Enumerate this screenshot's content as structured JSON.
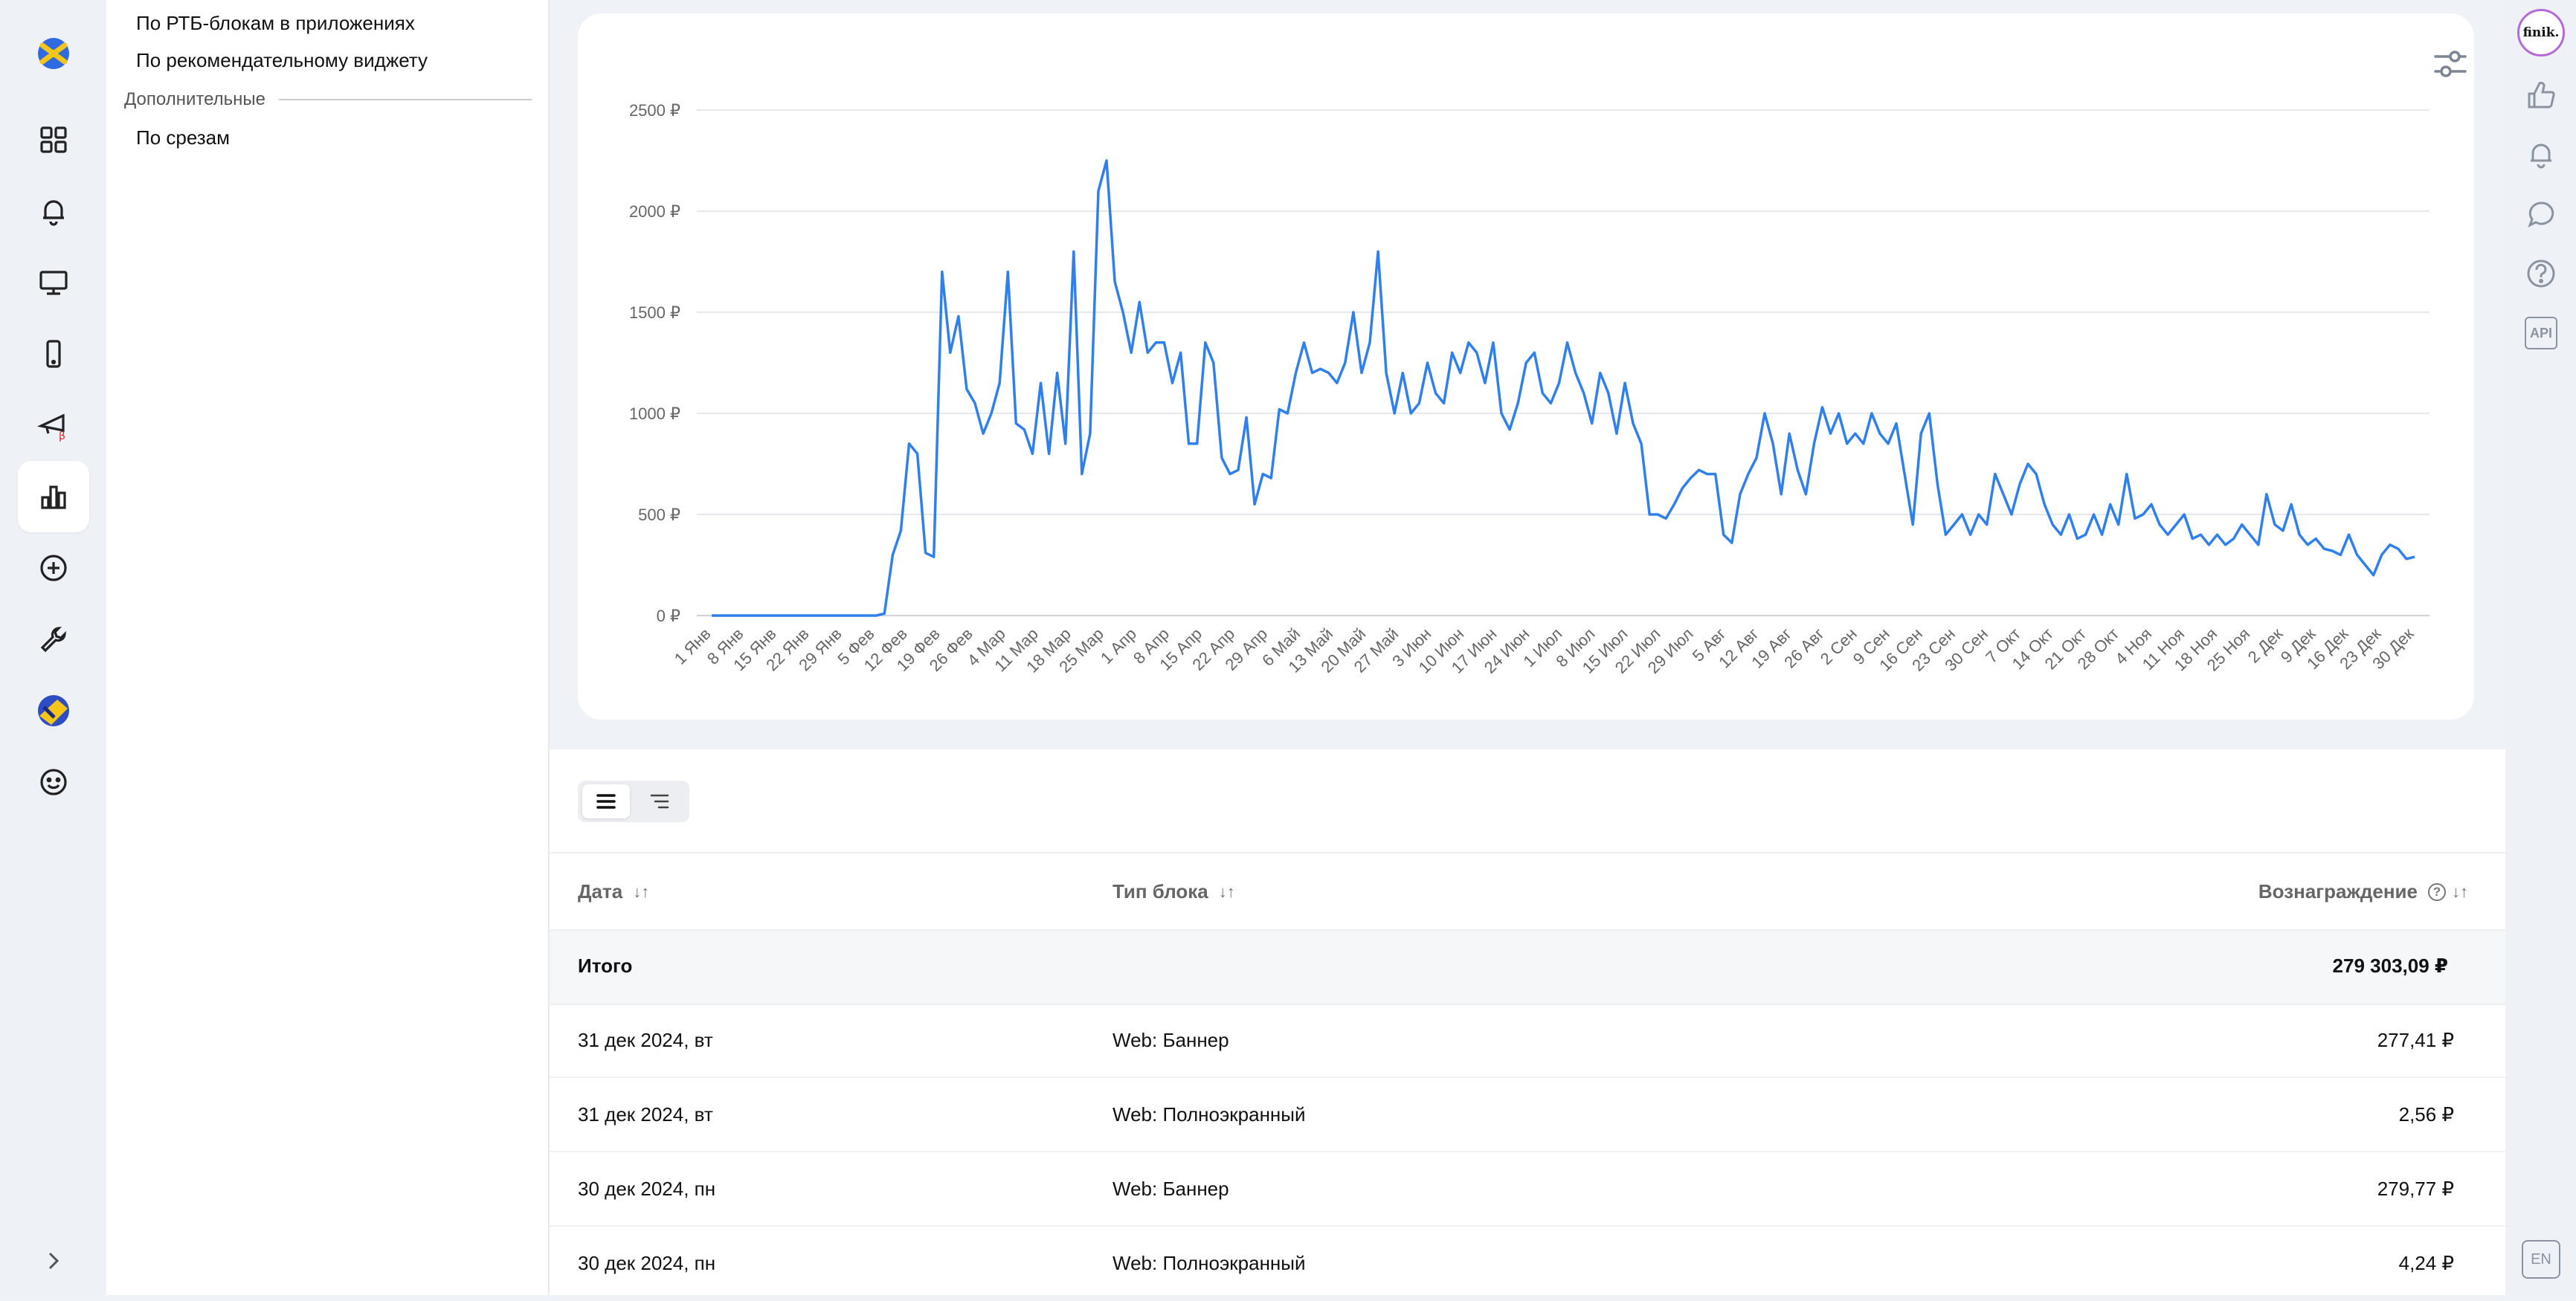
{
  "sidebar_menu": {
    "items_top": [
      "По РТБ-блокам в приложениях",
      "По рекомендательному виджету"
    ],
    "section_label": "Дополнительные",
    "items_section": [
      "По срезам"
    ]
  },
  "right_rail": {
    "avatar_label": "finik.",
    "api_label": "API",
    "lang_label": "EN"
  },
  "table": {
    "headers": {
      "date": "Дата",
      "block_type": "Тип блока",
      "reward": "Вознаграждение"
    },
    "total_label": "Итого",
    "total_value": "279 303,09 ₽",
    "rows": [
      {
        "date": "31 дек 2024, вт",
        "block": "Web: Баннер",
        "reward": "277,41 ₽"
      },
      {
        "date": "31 дек 2024, вт",
        "block": "Web: Полноэкранный",
        "reward": "2,56 ₽"
      },
      {
        "date": "30 дек 2024, пн",
        "block": "Web: Баннер",
        "reward": "279,77 ₽"
      },
      {
        "date": "30 дек 2024, пн",
        "block": "Web: Полноэкранный",
        "reward": "4,24 ₽"
      }
    ]
  },
  "colors": {
    "line": "#2f80ed",
    "active_rail": "#ffffff",
    "background": "#eff2f6"
  },
  "chart_data": {
    "type": "line",
    "title": "",
    "xlabel": "",
    "ylabel": "",
    "ylim": [
      0,
      2500
    ],
    "y_ticks": [
      "0 ₽",
      "500 ₽",
      "1000 ₽",
      "1500 ₽",
      "2000 ₽",
      "2500 ₽"
    ],
    "y_tick_values": [
      0,
      500,
      1000,
      1500,
      2000,
      2500
    ],
    "x_tick_labels": [
      "1 Янв",
      "8 Янв",
      "15 Янв",
      "22 Янв",
      "29 Янв",
      "5 Фев",
      "12 Фев",
      "19 Фев",
      "26 Фев",
      "4 Мар",
      "11 Мар",
      "18 Мар",
      "25 Мар",
      "1 Апр",
      "8 Апр",
      "15 Апр",
      "22 Апр",
      "29 Апр",
      "6 Май",
      "13 Май",
      "20 Май",
      "27 Май",
      "3 Июн",
      "10 Июн",
      "17 Июн",
      "24 Июн",
      "1 Июл",
      "8 Июл",
      "15 Июл",
      "22 Июл",
      "29 Июл",
      "5 Авг",
      "12 Авг",
      "19 Авг",
      "26 Авг",
      "2 Сен",
      "9 Сен",
      "16 Сен",
      "23 Сен",
      "30 Сен",
      "7 Окт",
      "14 Окт",
      "21 Окт",
      "28 Окт",
      "4 Ноя",
      "11 Ноя",
      "18 Ноя",
      "25 Ноя",
      "2 Дек",
      "9 Дек",
      "16 Дек",
      "23 Дек",
      "30 Дек"
    ],
    "grid": true,
    "series": [
      {
        "x_start": "2024-01-01",
        "interval_days": 2,
        "values": [
          0,
          0,
          0,
          0,
          0,
          0,
          0,
          0,
          0,
          0,
          0,
          0,
          0,
          0,
          0,
          0,
          0,
          0,
          0,
          0,
          0,
          10,
          300,
          420,
          850,
          800,
          310,
          290,
          1700,
          1300,
          1480,
          1120,
          1050,
          900,
          1000,
          1150,
          1700,
          950,
          920,
          800,
          1150,
          800,
          1200,
          850,
          1800,
          700,
          900,
          2100,
          2250,
          1650,
          1500,
          1300,
          1550,
          1300,
          1350,
          1350,
          1150,
          1300,
          850,
          850,
          1350,
          1250,
          780,
          700,
          720,
          980,
          550,
          700,
          680,
          1020,
          1000,
          1200,
          1350,
          1200,
          1220,
          1200,
          1150,
          1250,
          1500,
          1200,
          1350,
          1800,
          1200,
          1000,
          1200,
          1000,
          1050,
          1250,
          1100,
          1050,
          1300,
          1200,
          1350,
          1300,
          1150,
          1350,
          1000,
          920,
          1050,
          1250,
          1300,
          1100,
          1050,
          1150,
          1350,
          1200,
          1100,
          950,
          1200,
          1100,
          900,
          1150,
          950,
          850,
          500,
          500,
          480,
          550,
          630,
          680,
          720,
          700,
          700,
          400,
          360,
          600,
          700,
          780,
          1000,
          850,
          600,
          900,
          720,
          600,
          850,
          1030,
          900,
          1000,
          850,
          900,
          850,
          1000,
          900,
          850,
          950,
          700,
          450,
          900,
          1000,
          650,
          400,
          450,
          500,
          400,
          500,
          450,
          700,
          600,
          500,
          650,
          750,
          700,
          550,
          450,
          400,
          500,
          380,
          400,
          500,
          400,
          550,
          450,
          700,
          480,
          500,
          550,
          450,
          400,
          450,
          500,
          380,
          400,
          350,
          400,
          350,
          380,
          450,
          400,
          350,
          600,
          450,
          420,
          550,
          400,
          350,
          380,
          330,
          320,
          300,
          400,
          300,
          250,
          200,
          300,
          350,
          330,
          280,
          290
        ]
      }
    ]
  }
}
